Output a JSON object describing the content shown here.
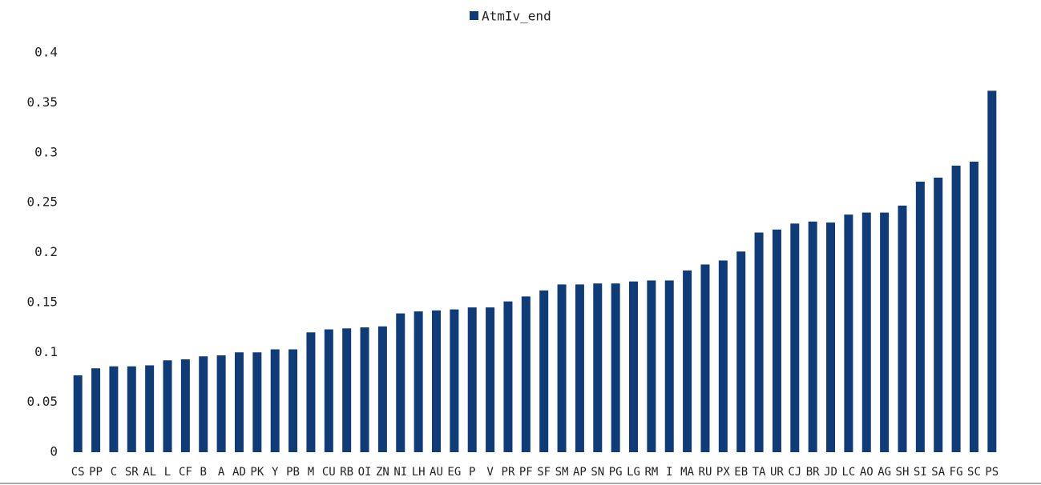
{
  "chart_data": {
    "type": "bar",
    "legend": "AtmIv_end",
    "legend_position": "top",
    "color": "#0f3c78",
    "categories": [
      "CS",
      "PP",
      "C",
      "SR",
      "AL",
      "L",
      "CF",
      "B",
      "A",
      "AD",
      "PK",
      "Y",
      "PB",
      "M",
      "CU",
      "RB",
      "OI",
      "ZN",
      "NI",
      "LH",
      "AU",
      "EG",
      "P",
      "V",
      "PR",
      "PF",
      "SF",
      "SM",
      "AP",
      "SN",
      "PG",
      "LG",
      "RM",
      "I",
      "MA",
      "RU",
      "PX",
      "EB",
      "TA",
      "UR",
      "CJ",
      "BR",
      "JD",
      "LC",
      "AO",
      "AG",
      "SH",
      "SI",
      "SA",
      "FG",
      "SC",
      "PS"
    ],
    "values": [
      0.077,
      0.084,
      0.086,
      0.086,
      0.087,
      0.092,
      0.093,
      0.096,
      0.097,
      0.1,
      0.1,
      0.103,
      0.103,
      0.12,
      0.123,
      0.124,
      0.125,
      0.126,
      0.139,
      0.141,
      0.142,
      0.143,
      0.145,
      0.145,
      0.151,
      0.156,
      0.162,
      0.168,
      0.168,
      0.169,
      0.169,
      0.171,
      0.172,
      0.172,
      0.182,
      0.188,
      0.192,
      0.201,
      0.22,
      0.223,
      0.229,
      0.231,
      0.23,
      0.238,
      0.24,
      0.24,
      0.247,
      0.271,
      0.275,
      0.287,
      0.291,
      0.362
    ],
    "ylim": [
      0,
      0.4
    ],
    "yticks": [
      0,
      0.05,
      0.1,
      0.15,
      0.2,
      0.25,
      0.3,
      0.35,
      0.4
    ],
    "grid": false
  }
}
